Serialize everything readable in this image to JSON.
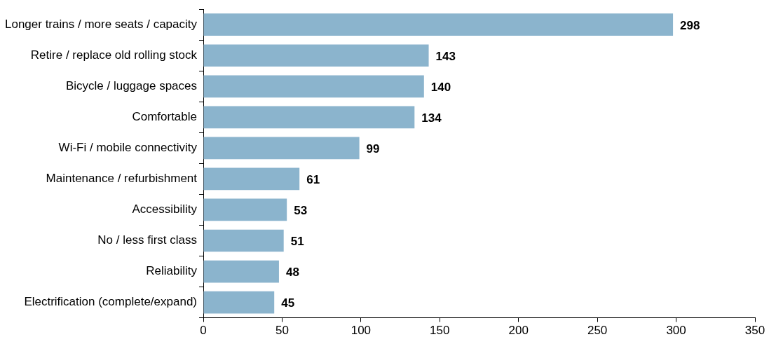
{
  "chart_data": {
    "type": "bar",
    "orientation": "horizontal",
    "categories": [
      "Longer trains / more seats / capacity",
      "Retire / replace old rolling stock",
      "Bicycle / luggage spaces",
      "Comfortable",
      "Wi-Fi / mobile connectivity",
      "Maintenance / refurbishment",
      "Accessibility",
      "No / less first class",
      "Reliability",
      "Electrification (complete/expand)"
    ],
    "values": [
      298,
      143,
      140,
      134,
      99,
      61,
      53,
      51,
      48,
      45
    ],
    "color": "#8bb4cd",
    "xlim": [
      0,
      350
    ],
    "xticks": [
      0,
      50,
      100,
      150,
      200,
      250,
      300,
      350
    ],
    "grid": false,
    "legend": false,
    "data_labels": true
  }
}
